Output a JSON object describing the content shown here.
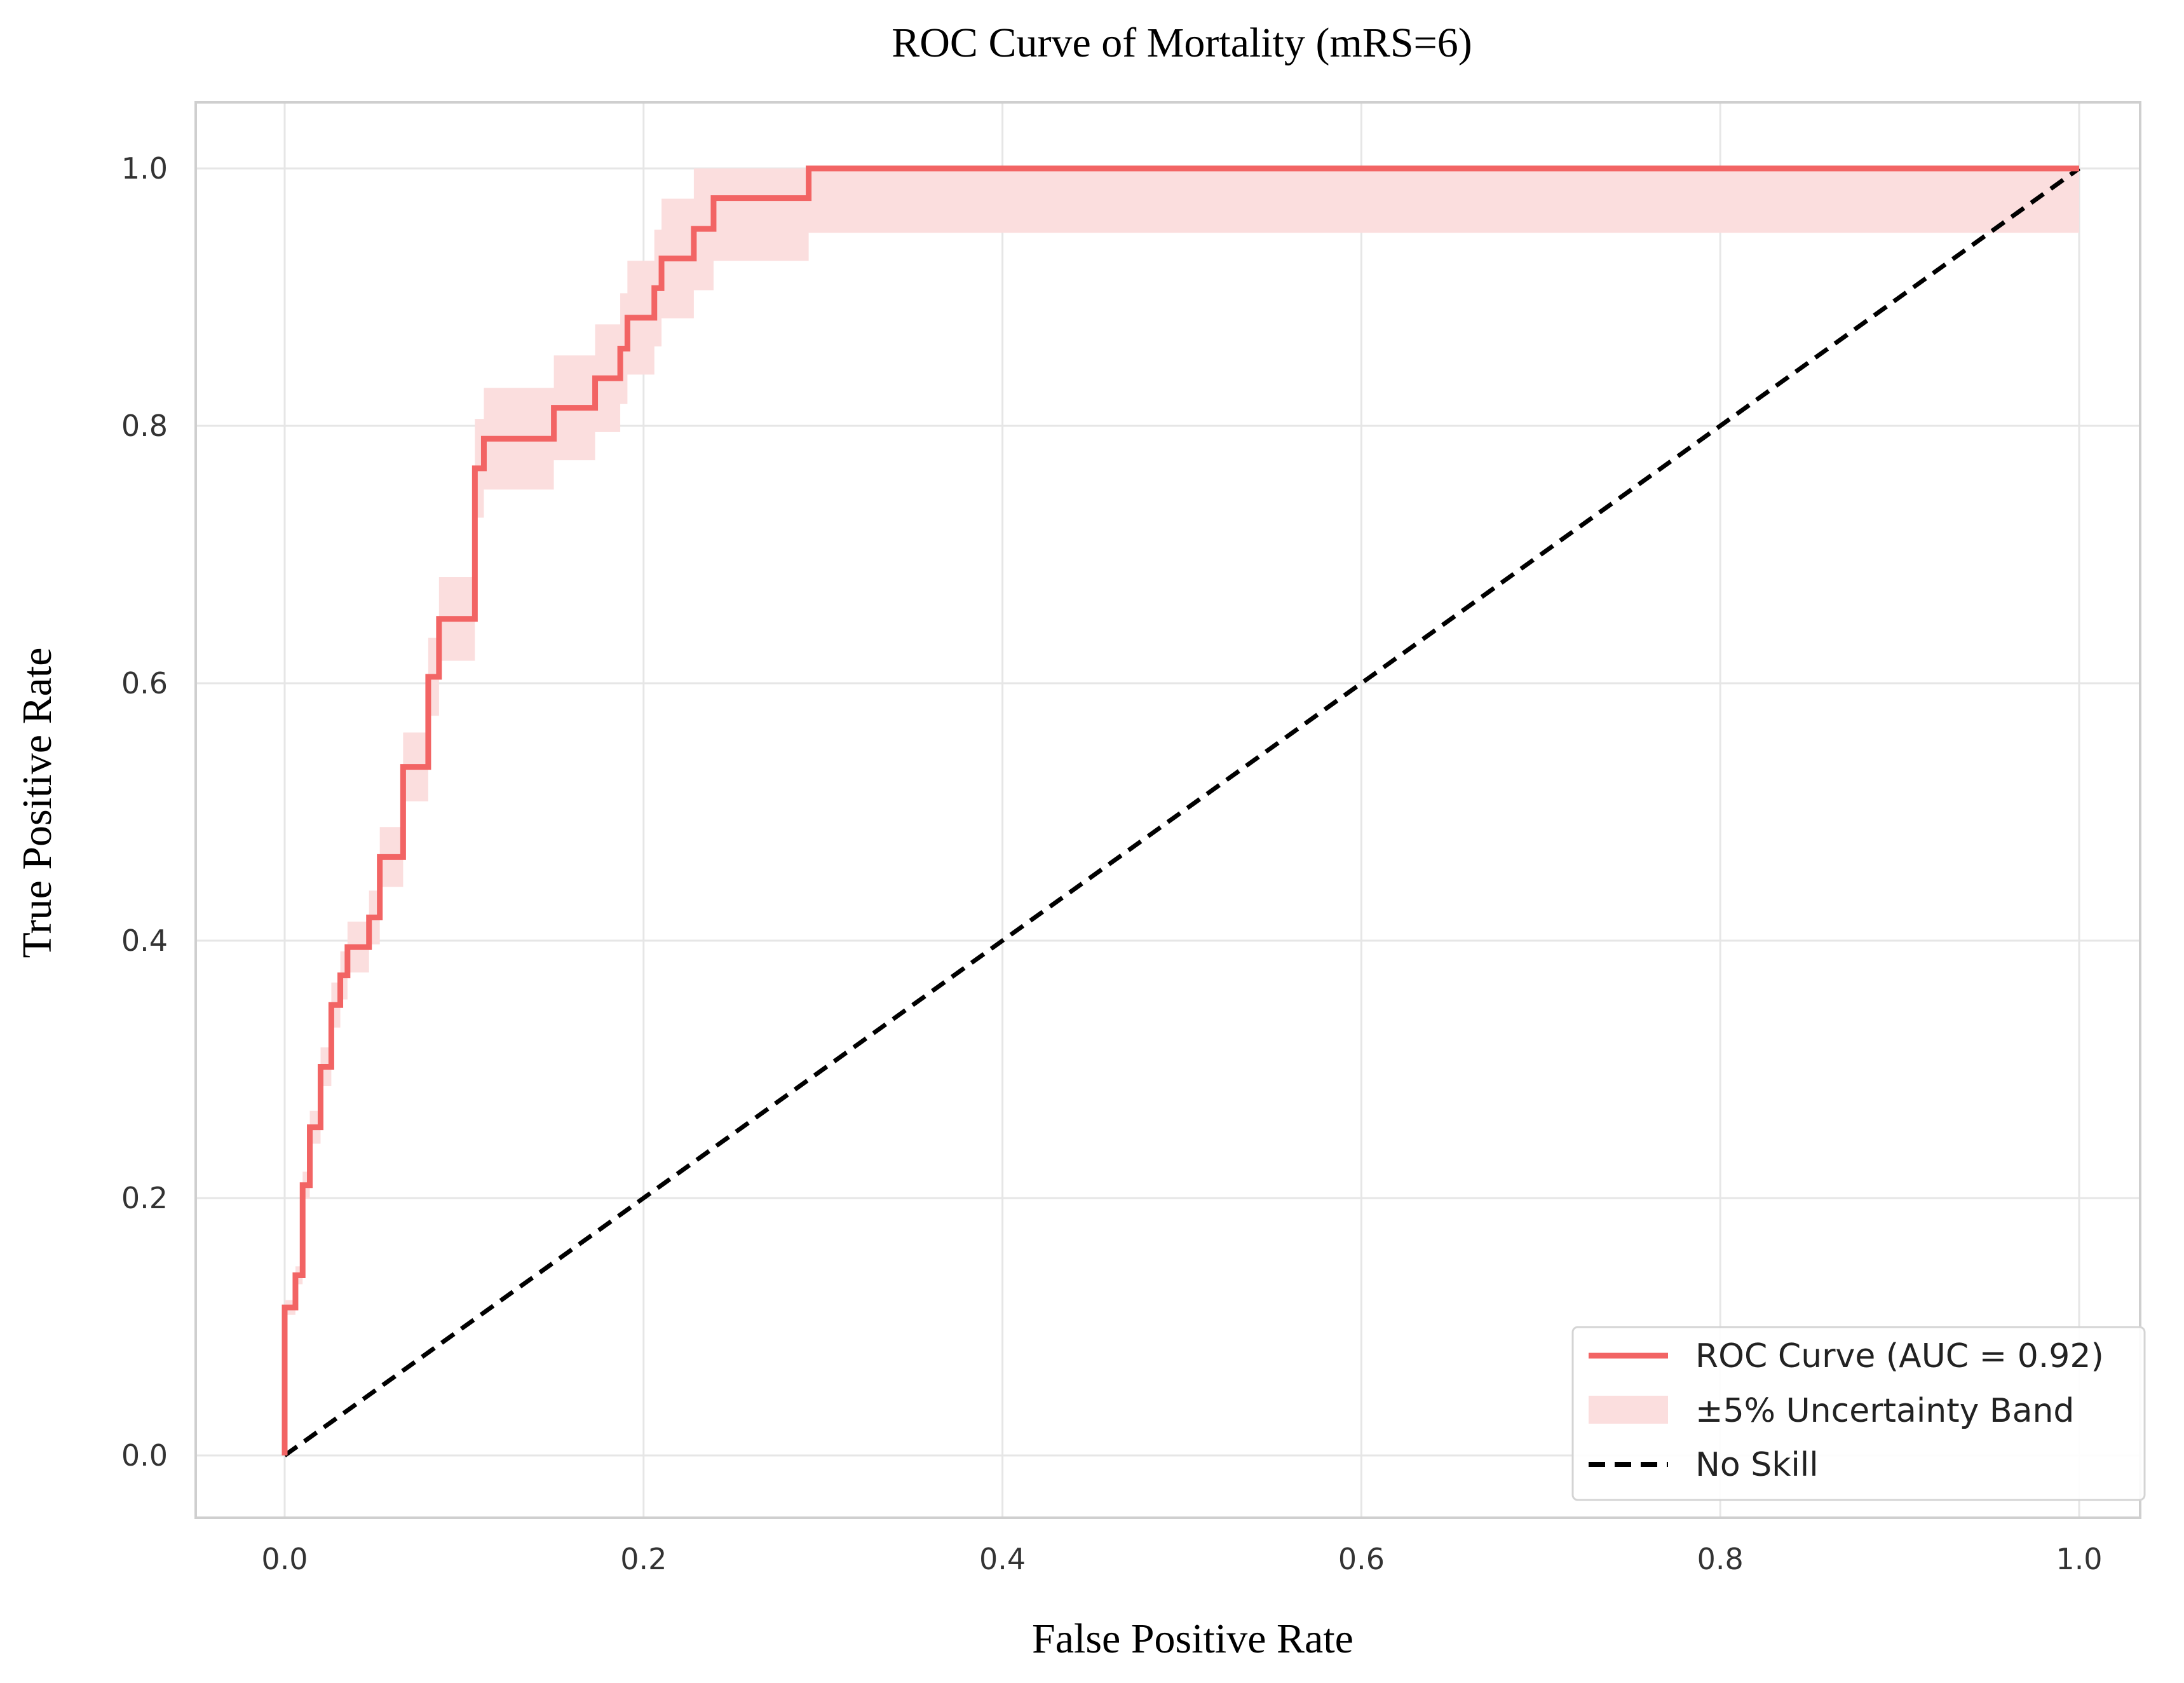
{
  "chart_data": {
    "type": "line",
    "title": "ROC Curve of Mortality (mRS=6)",
    "xlabel": "False Positive Rate",
    "ylabel": "True Positive Rate",
    "xlim": [
      -0.05,
      1.03
    ],
    "ylim": [
      -0.05,
      1.05
    ],
    "xticks": [
      0.0,
      0.2,
      0.4,
      0.6,
      0.8,
      1.0
    ],
    "yticks": [
      0.0,
      0.2,
      0.4,
      0.6,
      0.8,
      1.0
    ],
    "xtick_labels": [
      "0.0",
      "0.2",
      "0.4",
      "0.6",
      "0.8",
      "1.0"
    ],
    "ytick_labels": [
      "0.0",
      "0.2",
      "0.4",
      "0.6",
      "0.8",
      "1.0"
    ],
    "grid": true,
    "legend_position": "bottom-right",
    "series": [
      {
        "name": "ROC Curve (AUC = 0.92)",
        "kind": "roc",
        "color": "#f26464",
        "x": [
          0.0,
          0.0,
          0.006,
          0.006,
          0.01,
          0.01,
          0.014,
          0.014,
          0.02,
          0.02,
          0.026,
          0.026,
          0.031,
          0.031,
          0.035,
          0.035,
          0.047,
          0.047,
          0.053,
          0.053,
          0.066,
          0.066,
          0.08,
          0.08,
          0.086,
          0.086,
          0.106,
          0.106,
          0.111,
          0.111,
          0.15,
          0.15,
          0.173,
          0.173,
          0.187,
          0.187,
          0.191,
          0.191,
          0.206,
          0.206,
          0.21,
          0.21,
          0.228,
          0.228,
          0.239,
          0.239,
          0.292,
          0.292,
          1.0
        ],
        "y": [
          0.0,
          0.115,
          0.115,
          0.14,
          0.14,
          0.21,
          0.21,
          0.255,
          0.255,
          0.302,
          0.302,
          0.35,
          0.35,
          0.373,
          0.373,
          0.395,
          0.395,
          0.418,
          0.418,
          0.465,
          0.465,
          0.535,
          0.535,
          0.605,
          0.605,
          0.65,
          0.65,
          0.767,
          0.767,
          0.79,
          0.79,
          0.814,
          0.814,
          0.837,
          0.837,
          0.86,
          0.86,
          0.884,
          0.884,
          0.907,
          0.907,
          0.93,
          0.93,
          0.953,
          0.953,
          0.977,
          0.977,
          1.0,
          1.0
        ]
      },
      {
        "name": "±5% Uncertainty Band",
        "kind": "band",
        "color": "#fbdede",
        "relative_width": 0.05
      },
      {
        "name": "No Skill",
        "kind": "diagonal",
        "color": "#000000",
        "x": [
          0.0,
          1.0
        ],
        "y": [
          0.0,
          1.0
        ]
      }
    ]
  }
}
